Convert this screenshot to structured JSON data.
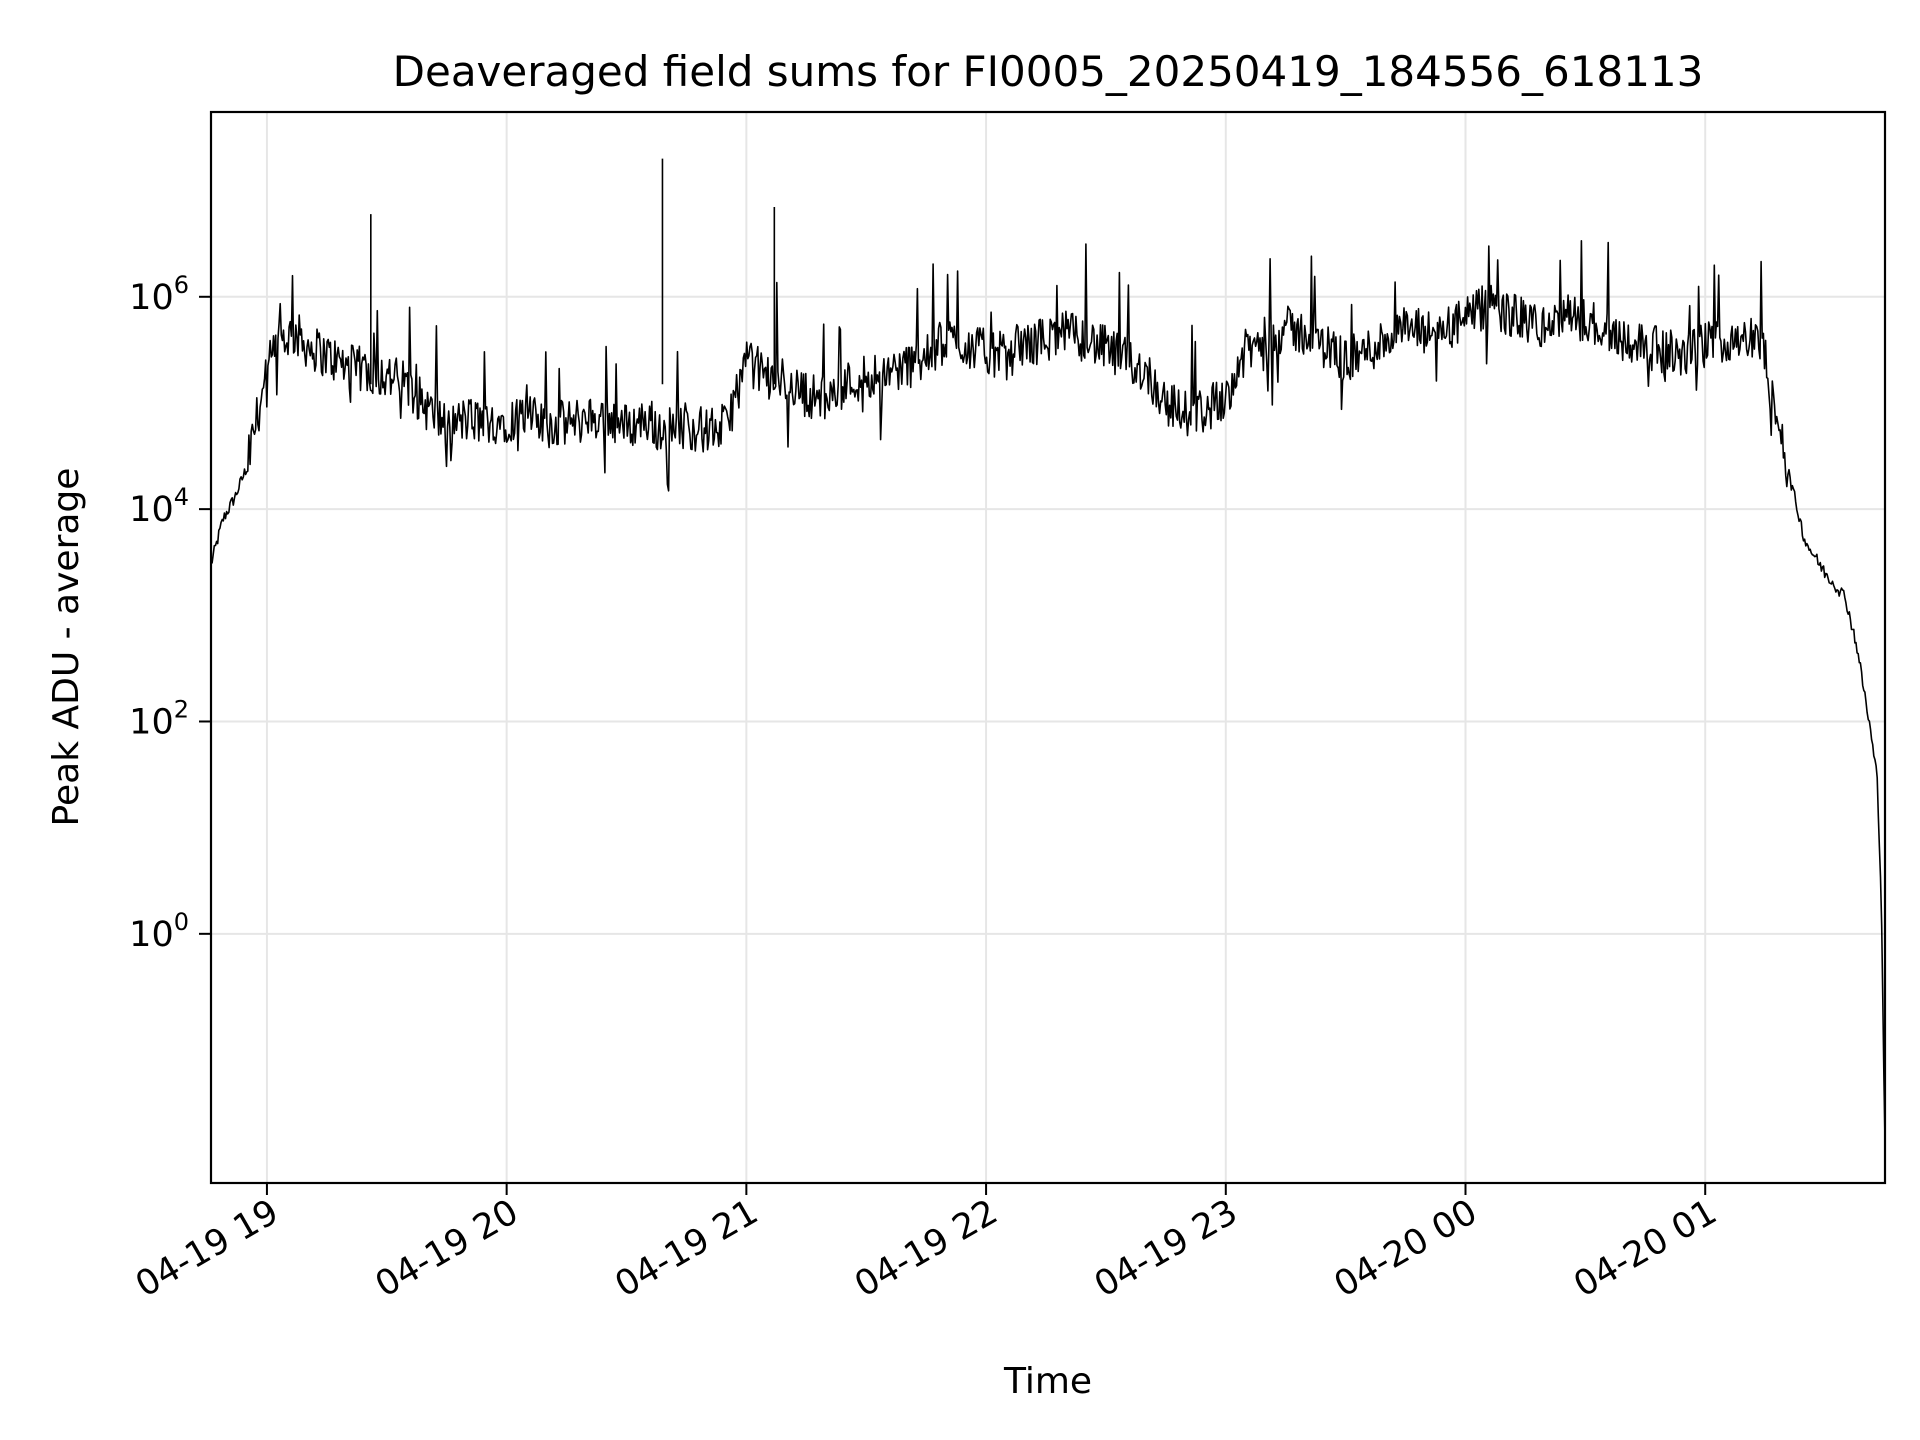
{
  "chart_data": {
    "type": "line",
    "title": "Deaveraged field sums for FI0005_20250419_184556_618113",
    "xlabel": "Time",
    "ylabel": "Peak ADU - average",
    "y_scale": "log",
    "grid": true,
    "line_color": "#000000",
    "grid_color": "#e6e6e6",
    "xlim": [
      "2025-04-19 18:46",
      "2025-04-20 01:45"
    ],
    "ylim": [
      0.0045,
      55000000
    ],
    "x_ticks": [
      {
        "label": "04-19 19",
        "time": "2025-04-19 19:00"
      },
      {
        "label": "04-19 20",
        "time": "2025-04-19 20:00"
      },
      {
        "label": "04-19 21",
        "time": "2025-04-19 21:00"
      },
      {
        "label": "04-19 22",
        "time": "2025-04-19 22:00"
      },
      {
        "label": "04-19 23",
        "time": "2025-04-19 23:00"
      },
      {
        "label": "04-20 00",
        "time": "2025-04-20 00:00"
      },
      {
        "label": "04-20 01",
        "time": "2025-04-20 01:00"
      }
    ],
    "y_ticks": [
      {
        "base": "10",
        "exp": "0",
        "value": 1
      },
      {
        "base": "10",
        "exp": "2",
        "value": 100
      },
      {
        "base": "10",
        "exp": "4",
        "value": 10000
      },
      {
        "base": "10",
        "exp": "6",
        "value": 1000000
      }
    ],
    "series": [
      {
        "x": [
          "2025-04-19 18:46",
          "2025-04-19 18:49",
          "2025-04-19 18:52",
          "2025-04-19 18:55",
          "2025-04-19 18:58",
          "2025-04-19 19:01",
          "2025-04-19 19:04",
          "2025-04-19 19:07",
          "2025-04-19 19:10",
          "2025-04-19 19:15",
          "2025-04-19 19:20",
          "2025-04-19 19:25",
          "2025-04-19 19:30",
          "2025-04-19 19:35",
          "2025-04-19 19:40",
          "2025-04-19 19:45",
          "2025-04-19 19:50",
          "2025-04-19 19:55",
          "2025-04-19 20:00",
          "2025-04-19 20:05",
          "2025-04-19 20:10",
          "2025-04-19 20:15",
          "2025-04-19 20:20",
          "2025-04-19 20:25",
          "2025-04-19 20:30",
          "2025-04-19 20:35",
          "2025-04-19 20:40",
          "2025-04-19 20:45",
          "2025-04-19 20:50",
          "2025-04-19 20:55",
          "2025-04-19 21:00",
          "2025-04-19 21:05",
          "2025-04-19 21:10",
          "2025-04-19 21:15",
          "2025-04-19 21:20",
          "2025-04-19 21:25",
          "2025-04-19 21:30",
          "2025-04-19 21:35",
          "2025-04-19 21:40",
          "2025-04-19 21:45",
          "2025-04-19 21:50",
          "2025-04-19 21:55",
          "2025-04-19 22:00",
          "2025-04-19 22:05",
          "2025-04-19 22:10",
          "2025-04-19 22:15",
          "2025-04-19 22:20",
          "2025-04-19 22:25",
          "2025-04-19 22:30",
          "2025-04-19 22:35",
          "2025-04-19 22:40",
          "2025-04-19 22:45",
          "2025-04-19 22:50",
          "2025-04-19 22:55",
          "2025-04-19 23:00",
          "2025-04-19 23:05",
          "2025-04-19 23:10",
          "2025-04-19 23:15",
          "2025-04-19 23:20",
          "2025-04-19 23:25",
          "2025-04-19 23:30",
          "2025-04-19 23:35",
          "2025-04-19 23:40",
          "2025-04-19 23:45",
          "2025-04-19 23:50",
          "2025-04-19 23:55",
          "2025-04-20 00:00",
          "2025-04-20 00:05",
          "2025-04-20 00:10",
          "2025-04-20 00:15",
          "2025-04-20 00:20",
          "2025-04-20 00:25",
          "2025-04-20 00:30",
          "2025-04-20 00:35",
          "2025-04-20 00:40",
          "2025-04-20 00:45",
          "2025-04-20 00:50",
          "2025-04-20 00:55",
          "2025-04-20 01:00",
          "2025-04-20 01:05",
          "2025-04-20 01:10",
          "2025-04-20 01:15",
          "2025-04-20 01:20",
          "2025-04-20 01:25",
          "2025-04-20 01:30",
          "2025-04-20 01:35",
          "2025-04-20 01:38",
          "2025-04-20 01:41",
          "2025-04-20 01:43",
          "2025-04-20 01:44",
          "2025-04-20 01:45"
        ],
        "y": [
          3000,
          8000,
          13000,
          25000,
          90000,
          250000,
          400000,
          450000,
          350000,
          280000,
          220000,
          200000,
          180000,
          150000,
          90000,
          60000,
          70000,
          65000,
          70000,
          75000,
          60000,
          65000,
          70000,
          75000,
          60000,
          70000,
          55000,
          60000,
          55000,
          60000,
          250000,
          180000,
          160000,
          120000,
          110000,
          150000,
          180000,
          200000,
          220000,
          260000,
          400000,
          350000,
          300000,
          280000,
          350000,
          400000,
          450000,
          400000,
          320000,
          250000,
          200000,
          100000,
          80000,
          85000,
          120000,
          300000,
          400000,
          500000,
          450000,
          350000,
          250000,
          300000,
          400000,
          500000,
          450000,
          500000,
          600000,
          800000,
          700000,
          600000,
          500000,
          650000,
          600000,
          500000,
          400000,
          350000,
          300000,
          280000,
          350000,
          400000,
          450000,
          300000,
          30000,
          5000,
          2500,
          1500,
          500,
          100,
          30,
          3,
          0.01
        ]
      }
    ],
    "spikes": [
      {
        "x": "2025-04-19 19:26",
        "y": 6000000
      },
      {
        "x": "2025-04-19 20:39",
        "y": 20000000
      },
      {
        "x": "2025-04-19 21:07",
        "y": 7000000
      }
    ]
  }
}
